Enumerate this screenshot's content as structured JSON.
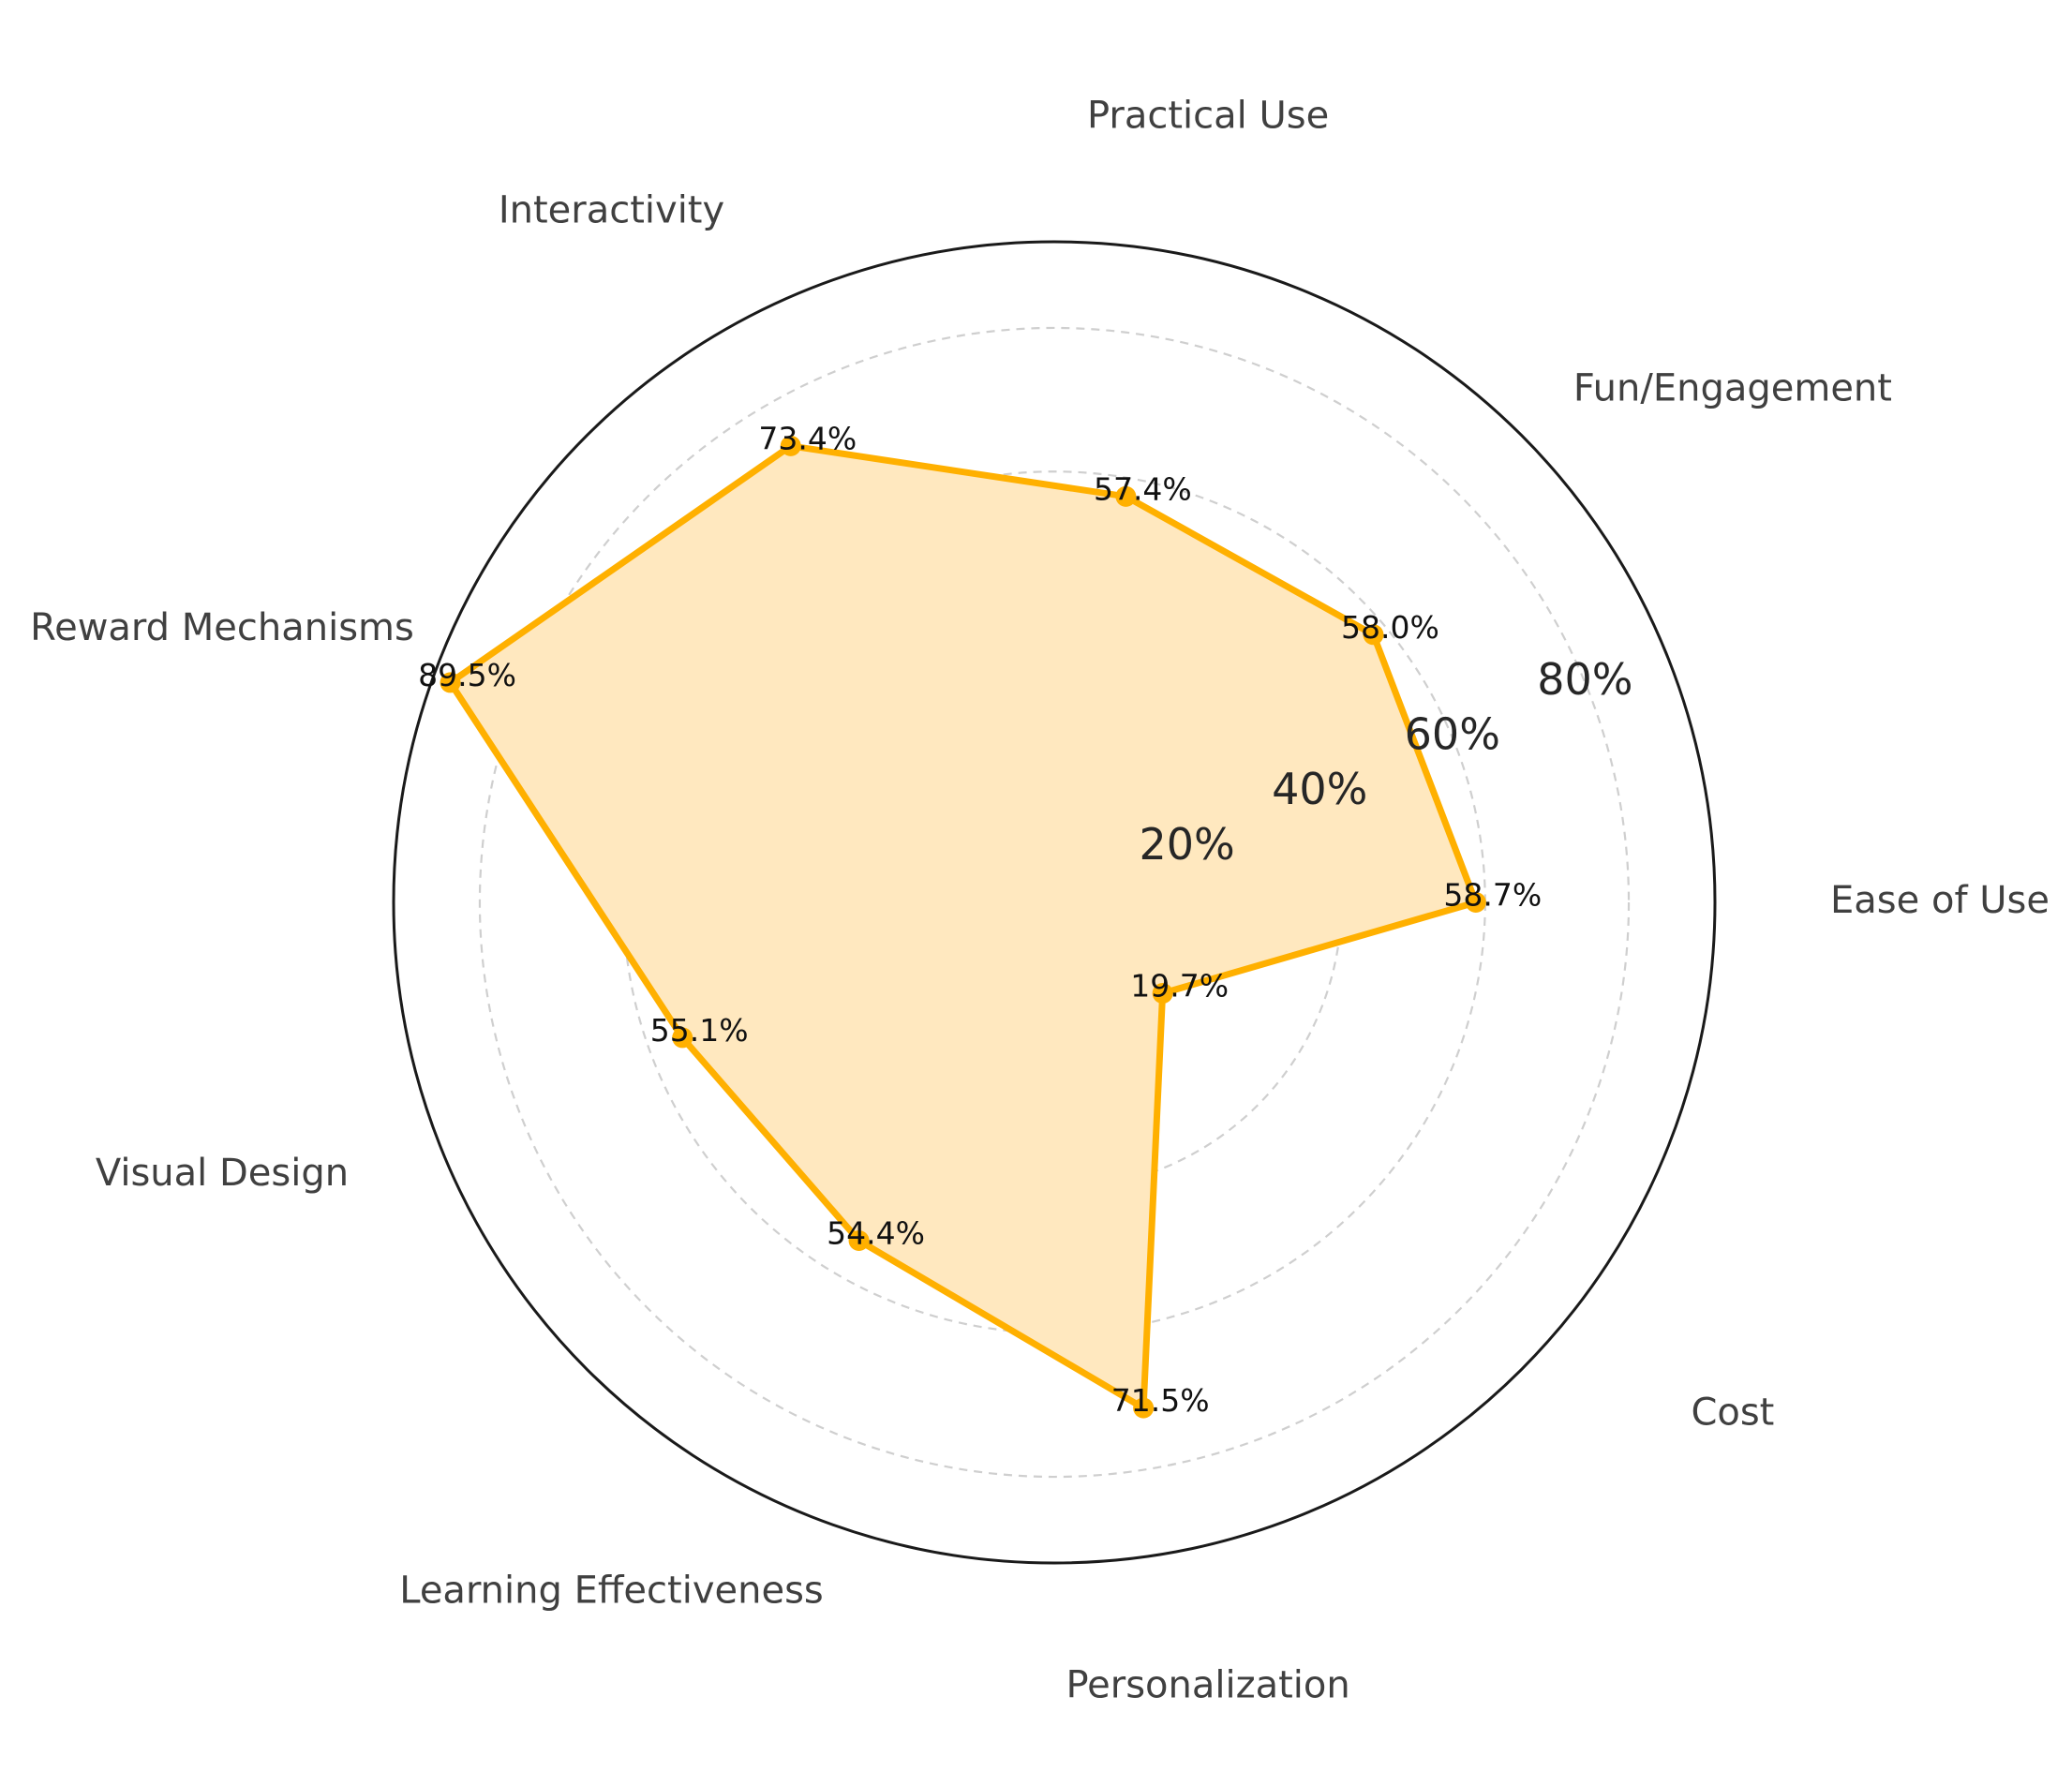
{
  "chart_data": {
    "type": "radar",
    "title": "",
    "categories": [
      "Ease of Use",
      "Fun/Engagement",
      "Practical Use",
      "Interactivity",
      "Reward Mechanisms",
      "Visual Design",
      "Learning Effectiveness",
      "Personalization",
      "Cost"
    ],
    "series": [
      {
        "values": [
          58.7,
          58.0,
          57.4,
          73.4,
          89.5,
          55.1,
          54.4,
          71.5,
          19.7
        ],
        "value_labels": [
          "58.7%",
          "58.0%",
          "57.4%",
          "73.4%",
          "89.5%",
          "55.1%",
          "54.4%",
          "71.5%",
          "19.7%"
        ],
        "color": "#FFB000",
        "fill_color": "#FFE8BF"
      }
    ],
    "radial_ticks": [
      {
        "value": 20,
        "label": "20%"
      },
      {
        "value": 40,
        "label": "40%"
      },
      {
        "value": 60,
        "label": "60%"
      },
      {
        "value": 80,
        "label": "80%"
      }
    ],
    "rlim": [
      0,
      92
    ],
    "grid": true,
    "grid_style": "dashed",
    "outer_ring_color": "#1a1a1a",
    "grid_color": "#cfcfcf"
  }
}
